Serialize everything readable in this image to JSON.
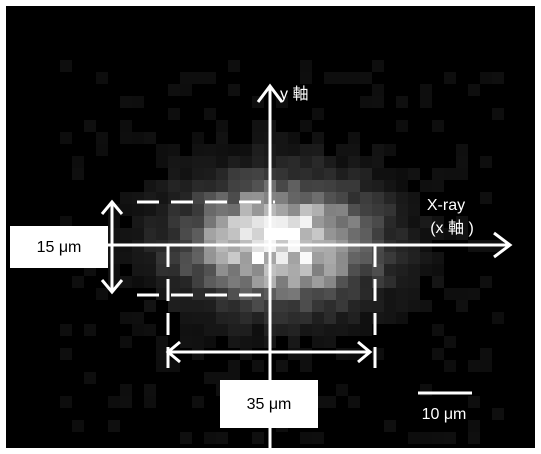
{
  "y_axis_label": "y 軸",
  "x_axis_label": {
    "line1": "X-ray",
    "line2": "(x 軸 )"
  },
  "height_label": "15 μm",
  "width_label": "35 μm",
  "scale_label": "10 μm"
}
